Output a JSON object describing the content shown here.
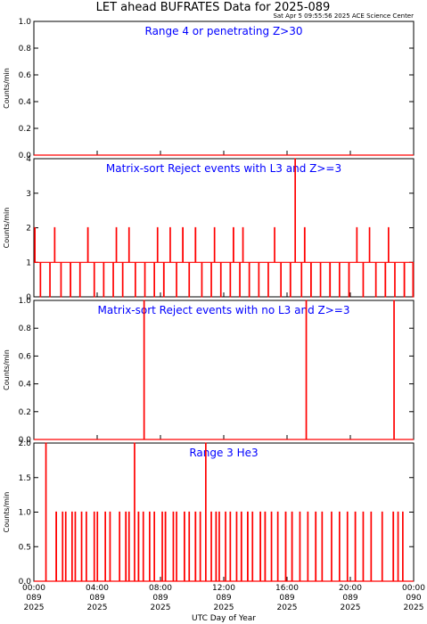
{
  "title": "LET ahead BUFRATES Data for 2025-089",
  "timestamp": "Sat Apr  5 09:55:56 2025 ACE Science Center",
  "x_axis_label": "UTC Day of Year",
  "colors": {
    "trace": "#ff0000",
    "panel_title": "#0000ff",
    "axes": "#000000"
  },
  "chart_data": [
    {
      "type": "line",
      "title": "Range 4 or  penetrating Z>30",
      "ylabel": "Counts/min",
      "ylim": [
        0,
        1.0
      ],
      "yticks": [
        "0.0",
        "0.2",
        "0.4",
        "0.6",
        "0.8",
        "1.0"
      ],
      "xlim": [
        0,
        24
      ],
      "baseline": 0,
      "spikes": []
    },
    {
      "type": "line",
      "title": "Matrix-sort Reject events with L3 and Z>=3",
      "ylabel": "Counts/min",
      "ylim": [
        0,
        4
      ],
      "yticks": [
        "0",
        "1",
        "2",
        "3",
        "4"
      ],
      "xlim": [
        0,
        24
      ],
      "baseline": 1,
      "spikes": [
        [
          0.05,
          2
        ],
        [
          0.2,
          1
        ],
        [
          0.4,
          0
        ],
        [
          0.6,
          1
        ],
        [
          0.8,
          1
        ],
        [
          1.0,
          0
        ],
        [
          1.3,
          2
        ],
        [
          1.5,
          1
        ],
        [
          1.7,
          0
        ],
        [
          1.9,
          1
        ],
        [
          2.1,
          1
        ],
        [
          2.3,
          0
        ],
        [
          2.5,
          1
        ],
        [
          2.7,
          1
        ],
        [
          2.9,
          0
        ],
        [
          3.1,
          1
        ],
        [
          3.4,
          2
        ],
        [
          3.6,
          1
        ],
        [
          3.8,
          0
        ],
        [
          4.0,
          1
        ],
        [
          4.2,
          1
        ],
        [
          4.4,
          0
        ],
        [
          4.6,
          1
        ],
        [
          4.8,
          1
        ],
        [
          5.0,
          0
        ],
        [
          5.2,
          2
        ],
        [
          5.4,
          1
        ],
        [
          5.6,
          0
        ],
        [
          5.8,
          1
        ],
        [
          6.0,
          2
        ],
        [
          6.2,
          1
        ],
        [
          6.4,
          0
        ],
        [
          6.6,
          1
        ],
        [
          6.8,
          1
        ],
        [
          7.0,
          0
        ],
        [
          7.2,
          1
        ],
        [
          7.4,
          1
        ],
        [
          7.6,
          0
        ],
        [
          7.8,
          2
        ],
        [
          8.0,
          1
        ],
        [
          8.2,
          0
        ],
        [
          8.4,
          1
        ],
        [
          8.6,
          2
        ],
        [
          8.8,
          1
        ],
        [
          9.0,
          0
        ],
        [
          9.2,
          1
        ],
        [
          9.4,
          2
        ],
        [
          9.6,
          1
        ],
        [
          9.8,
          0
        ],
        [
          10.0,
          1
        ],
        [
          10.2,
          2
        ],
        [
          10.4,
          1
        ],
        [
          10.6,
          0
        ],
        [
          10.8,
          1
        ],
        [
          11.0,
          1
        ],
        [
          11.2,
          0
        ],
        [
          11.4,
          2
        ],
        [
          11.6,
          1
        ],
        [
          11.8,
          0
        ],
        [
          12.0,
          1
        ],
        [
          12.2,
          1
        ],
        [
          12.4,
          0
        ],
        [
          12.6,
          2
        ],
        [
          12.8,
          1
        ],
        [
          13.0,
          0
        ],
        [
          13.2,
          2
        ],
        [
          13.4,
          1
        ],
        [
          13.6,
          0
        ],
        [
          13.8,
          1
        ],
        [
          14.0,
          1
        ],
        [
          14.2,
          0
        ],
        [
          14.4,
          1
        ],
        [
          14.6,
          1
        ],
        [
          14.8,
          0
        ],
        [
          15.0,
          1
        ],
        [
          15.2,
          2
        ],
        [
          15.4,
          1
        ],
        [
          15.6,
          0
        ],
        [
          15.8,
          1
        ],
        [
          16.0,
          1
        ],
        [
          16.2,
          0
        ],
        [
          16.5,
          4
        ],
        [
          16.7,
          1
        ],
        [
          16.9,
          0
        ],
        [
          17.1,
          2
        ],
        [
          17.3,
          1
        ],
        [
          17.5,
          0
        ],
        [
          17.7,
          1
        ],
        [
          17.9,
          1
        ],
        [
          18.1,
          0
        ],
        [
          18.3,
          1
        ],
        [
          18.5,
          1
        ],
        [
          18.7,
          0
        ],
        [
          18.9,
          1
        ],
        [
          19.1,
          1
        ],
        [
          19.3,
          0
        ],
        [
          19.5,
          1
        ],
        [
          19.7,
          1
        ],
        [
          19.9,
          0
        ],
        [
          20.1,
          1
        ],
        [
          20.4,
          2
        ],
        [
          20.6,
          1
        ],
        [
          20.8,
          0
        ],
        [
          21.0,
          1
        ],
        [
          21.2,
          2
        ],
        [
          21.4,
          1
        ],
        [
          21.6,
          0
        ],
        [
          21.8,
          1
        ],
        [
          22.0,
          1
        ],
        [
          22.2,
          0
        ],
        [
          22.4,
          2
        ],
        [
          22.6,
          1
        ],
        [
          22.8,
          0
        ],
        [
          23.0,
          1
        ],
        [
          23.2,
          1
        ],
        [
          23.4,
          0
        ],
        [
          23.6,
          1
        ],
        [
          23.8,
          1
        ],
        [
          23.95,
          0
        ]
      ]
    },
    {
      "type": "line",
      "title": "Matrix-sort Reject events with no L3 and Z>=3",
      "ylabel": "Counts/min",
      "ylim": [
        0,
        1.0
      ],
      "yticks": [
        "0.0",
        "0.2",
        "0.4",
        "0.6",
        "0.8",
        "1.0"
      ],
      "xlim": [
        0,
        24
      ],
      "baseline": 0,
      "spikes": [
        [
          6.95,
          1.0
        ],
        [
          17.2,
          1.0
        ],
        [
          22.75,
          1.0
        ]
      ]
    },
    {
      "type": "line",
      "title": "Range 3 He3",
      "ylabel": "Counts/min",
      "ylim": [
        0,
        2.0
      ],
      "yticks": [
        "0.0",
        "0.5",
        "1.0",
        "1.5",
        "2.0"
      ],
      "xlim": [
        0,
        24
      ],
      "baseline": 0,
      "spikes": [
        [
          0.75,
          2.0
        ],
        [
          1.4,
          1.0
        ],
        [
          1.8,
          1.0
        ],
        [
          2.0,
          1.0
        ],
        [
          2.4,
          1.0
        ],
        [
          2.6,
          1.0
        ],
        [
          3.0,
          1.0
        ],
        [
          3.3,
          1.0
        ],
        [
          3.8,
          1.0
        ],
        [
          4.0,
          1.0
        ],
        [
          4.5,
          1.0
        ],
        [
          4.8,
          1.0
        ],
        [
          5.4,
          1.0
        ],
        [
          5.8,
          1.0
        ],
        [
          6.0,
          1.0
        ],
        [
          6.35,
          2.0
        ],
        [
          6.6,
          1.0
        ],
        [
          6.9,
          1.0
        ],
        [
          7.3,
          1.0
        ],
        [
          7.6,
          1.0
        ],
        [
          8.1,
          1.0
        ],
        [
          8.3,
          1.0
        ],
        [
          8.8,
          1.0
        ],
        [
          9.0,
          1.0
        ],
        [
          9.5,
          1.0
        ],
        [
          9.8,
          1.0
        ],
        [
          10.2,
          1.0
        ],
        [
          10.5,
          1.0
        ],
        [
          10.85,
          2.0
        ],
        [
          11.2,
          1.0
        ],
        [
          11.5,
          1.0
        ],
        [
          11.7,
          1.0
        ],
        [
          12.1,
          1.0
        ],
        [
          12.4,
          1.0
        ],
        [
          12.8,
          1.0
        ],
        [
          13.1,
          1.0
        ],
        [
          13.5,
          1.0
        ],
        [
          13.8,
          1.0
        ],
        [
          14.3,
          1.0
        ],
        [
          14.6,
          1.0
        ],
        [
          15.0,
          1.0
        ],
        [
          15.4,
          1.0
        ],
        [
          15.9,
          1.0
        ],
        [
          16.3,
          1.0
        ],
        [
          16.8,
          1.0
        ],
        [
          17.3,
          1.0
        ],
        [
          17.8,
          1.0
        ],
        [
          18.2,
          1.0
        ],
        [
          18.8,
          1.0
        ],
        [
          19.3,
          1.0
        ],
        [
          19.8,
          1.0
        ],
        [
          20.3,
          1.0
        ],
        [
          20.8,
          1.0
        ],
        [
          21.3,
          1.0
        ],
        [
          22.0,
          1.0
        ],
        [
          22.7,
          1.0
        ],
        [
          23.0,
          1.0
        ],
        [
          23.3,
          1.0
        ]
      ]
    }
  ],
  "x_ticks": [
    {
      "time": "00:00",
      "doy": "089",
      "year": "2025"
    },
    {
      "time": "04:00",
      "doy": "089",
      "year": "2025"
    },
    {
      "time": "08:00",
      "doy": "089",
      "year": "2025"
    },
    {
      "time": "12:00",
      "doy": "089",
      "year": "2025"
    },
    {
      "time": "16:00",
      "doy": "089",
      "year": "2025"
    },
    {
      "time": "20:00",
      "doy": "089",
      "year": "2025"
    },
    {
      "time": "00:00",
      "doy": "090",
      "year": "2025"
    }
  ]
}
